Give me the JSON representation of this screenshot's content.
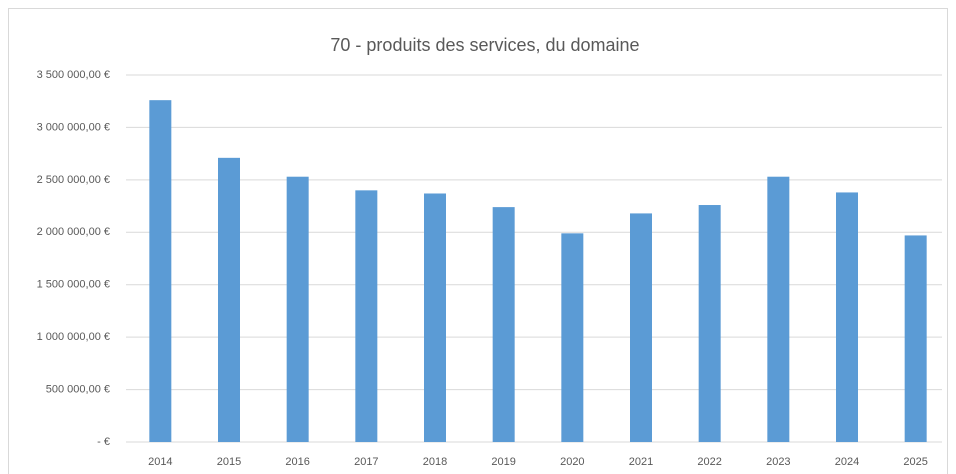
{
  "chart_data": {
    "type": "bar",
    "title": "70 - produits des services, du domaine",
    "categories": [
      "2014",
      "2015",
      "2016",
      "2017",
      "2018",
      "2019",
      "2020",
      "2021",
      "2022",
      "2023",
      "2024",
      "2025"
    ],
    "values": [
      3260000,
      2710000,
      2530000,
      2400000,
      2370000,
      2240000,
      1990000,
      2180000,
      2260000,
      2530000,
      2380000,
      1970000
    ],
    "color": "#5b9bd5",
    "ylim": [
      0,
      3500000
    ],
    "yticks": [
      {
        "value": 0,
        "label": "- €"
      },
      {
        "value": 500000,
        "label": "500 000,00 €"
      },
      {
        "value": 1000000,
        "label": "1 000 000,00 €"
      },
      {
        "value": 1500000,
        "label": "1 500 000,00 €"
      },
      {
        "value": 2000000,
        "label": "2 000 000,00 €"
      },
      {
        "value": 2500000,
        "label": "2 500 000,00 €"
      },
      {
        "value": 3000000,
        "label": "3 000 000,00 €"
      },
      {
        "value": 3500000,
        "label": "3 500 000,00 €"
      }
    ],
    "grid": true
  }
}
